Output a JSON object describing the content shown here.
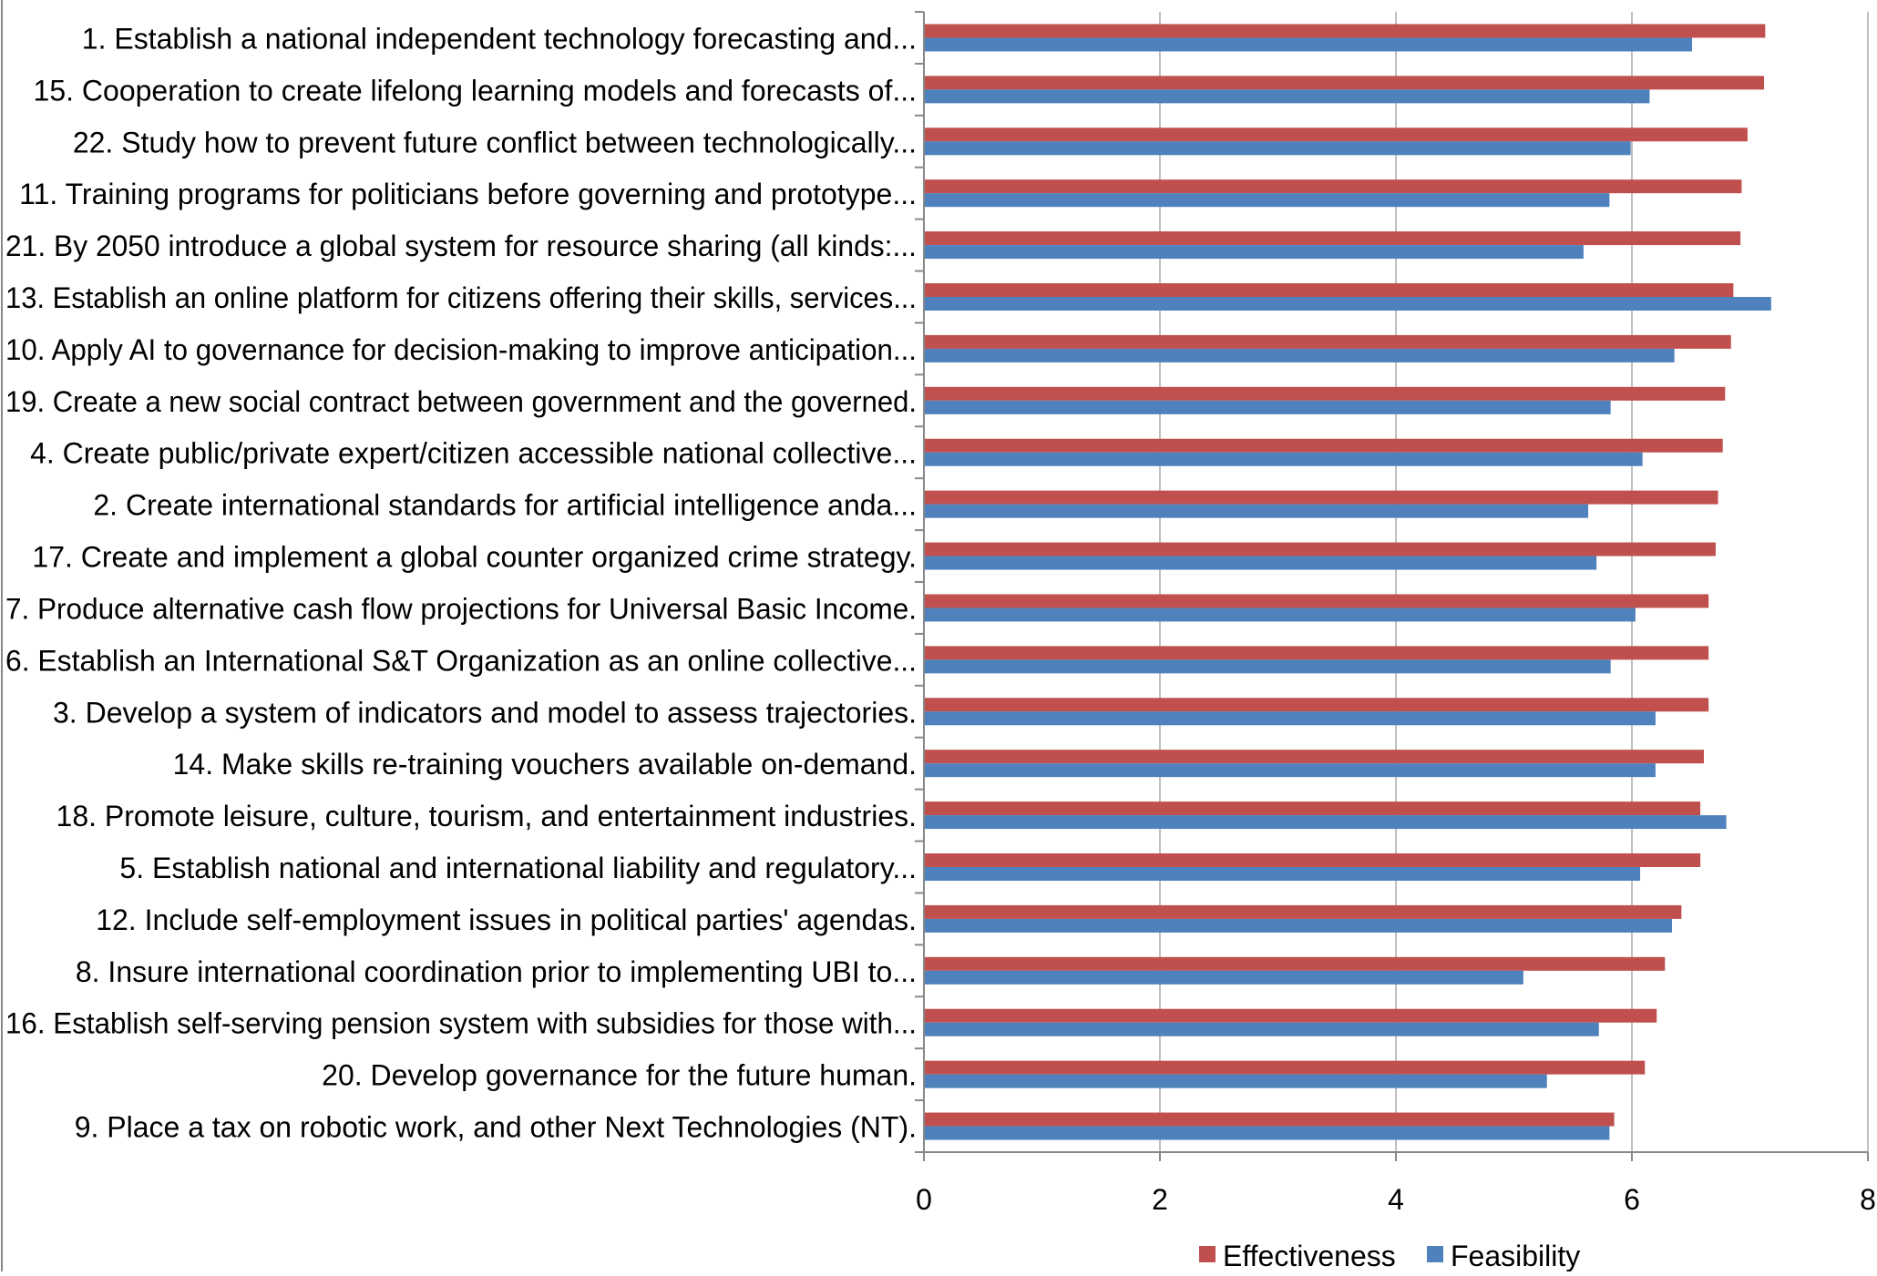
{
  "chart_data": {
    "type": "bar",
    "orientation": "horizontal",
    "categories": [
      "1. Establish a national independent technology forecasting and...",
      "15. Cooperation to create lifelong learning models and forecasts of...",
      "22. Study how to prevent future conflict between technologically...",
      "11. Training programs for politicians before governing and prototype...",
      "21. By 2050 introduce a global system for resource sharing (all kinds:...",
      "13. Establish an online platform for citizens offering their skills, services...",
      "10. Apply AI to governance for decision-making to improve anticipation...",
      "19. Create a new social contract between government and the governed.",
      "4. Create public/private expert/citizen accessible national collective...",
      "2. Create international standards for artificial intelligence anda...",
      "17. Create and implement a global counter organized crime strategy.",
      "7. Produce alternative cash flow projections for Universal Basic Income.",
      "6. Establish an International S&T Organization as an online collective...",
      "3. Develop a system of indicators and model to assess trajectories.",
      "14. Make skills re-training vouchers available on-demand.",
      "18. Promote leisure, culture, tourism, and entertainment industries.",
      "5. Establish national and international liability and regulatory...",
      "12. Include self-employment issues in political parties' agendas.",
      "8. Insure international coordination prior to implementing UBI to...",
      "16. Establish self-serving pension system with subsidies for those with...",
      "20. Develop governance for the future human.",
      "9. Place a tax on robotic work, and other Next Technologies (NT)."
    ],
    "series": [
      {
        "name": "Effectiveness",
        "color": "#c0504d",
        "values": [
          7.13,
          7.12,
          6.98,
          6.93,
          6.92,
          6.86,
          6.84,
          6.79,
          6.77,
          6.73,
          6.71,
          6.65,
          6.65,
          6.65,
          6.61,
          6.58,
          6.58,
          6.42,
          6.28,
          6.21,
          6.11,
          5.85
        ]
      },
      {
        "name": "Feasibility",
        "color": "#4f81bd",
        "values": [
          6.51,
          6.15,
          5.99,
          5.81,
          5.59,
          7.18,
          6.36,
          5.82,
          6.09,
          5.63,
          5.7,
          6.03,
          5.82,
          6.2,
          6.2,
          6.8,
          6.07,
          6.34,
          5.08,
          5.72,
          5.28,
          5.81
        ]
      }
    ],
    "xlim": [
      0,
      8
    ],
    "xticks": [
      "0",
      "2",
      "4",
      "6",
      "8"
    ],
    "grid": true,
    "legend": "bottom",
    "title": "",
    "xlabel": "",
    "ylabel": ""
  }
}
